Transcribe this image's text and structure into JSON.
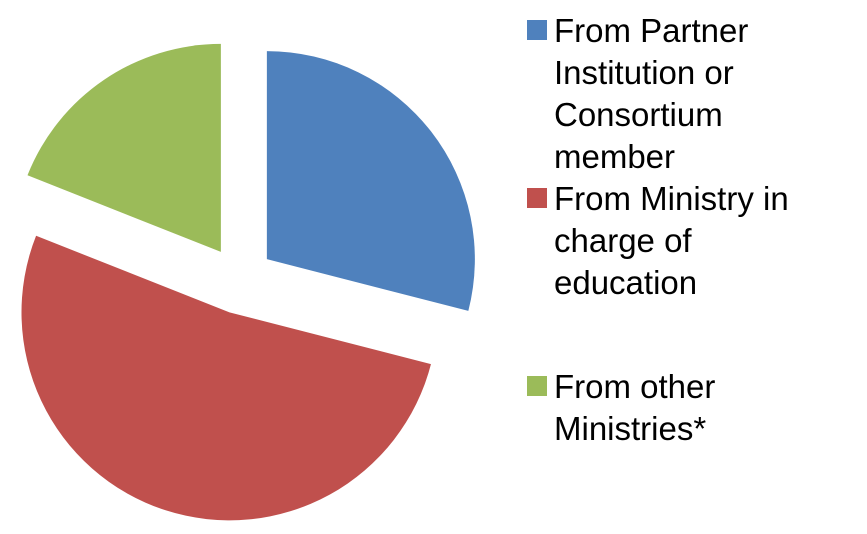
{
  "chart_data": {
    "type": "pie",
    "categories": [
      "From Partner Institution or Consortium member",
      "From Ministry in charge of education",
      "From other Ministries*"
    ],
    "values": [
      29,
      52,
      19
    ],
    "colors": [
      "#4f81bd",
      "#c0504d",
      "#9bbb59"
    ],
    "exploded": true,
    "legend": "right"
  }
}
